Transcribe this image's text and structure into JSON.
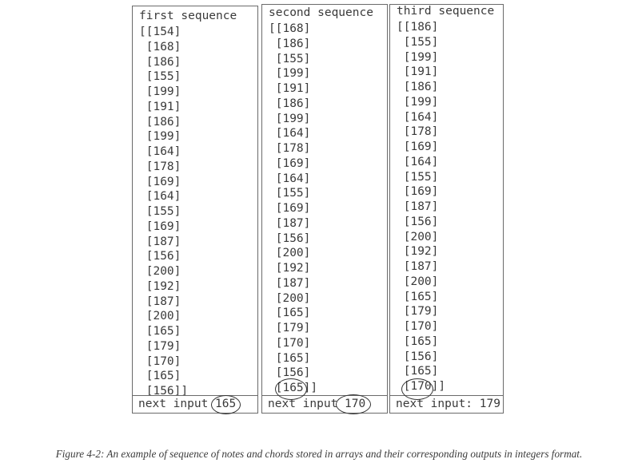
{
  "columns": [
    {
      "title": "first sequence",
      "items": [
        "[[154]",
        " [168]",
        " [186]",
        " [155]",
        " [199]",
        " [191]",
        " [186]",
        " [199]",
        " [164]",
        " [178]",
        " [169]",
        " [164]",
        " [155]",
        " [169]",
        " [187]",
        " [156]",
        " [200]",
        " [192]",
        " [187]",
        " [200]",
        " [165]",
        " [179]",
        " [170]",
        " [165]",
        " [156]]"
      ],
      "next_input": "next input 165"
    },
    {
      "title": "second sequence",
      "items": [
        "[[168]",
        " [186]",
        " [155]",
        " [199]",
        " [191]",
        " [186]",
        " [199]",
        " [164]",
        " [178]",
        " [169]",
        " [164]",
        " [155]",
        " [169]",
        " [187]",
        " [156]",
        " [200]",
        " [192]",
        " [187]",
        " [200]",
        " [165]",
        " [179]",
        " [170]",
        " [165]",
        " [156]",
        " [165]]"
      ],
      "next_input": "next input 170"
    },
    {
      "title": "third sequence",
      "items": [
        "[[186]",
        " [155]",
        " [199]",
        " [191]",
        " [186]",
        " [199]",
        " [164]",
        " [178]",
        " [169]",
        " [164]",
        " [155]",
        " [169]",
        " [187]",
        " [156]",
        " [200]",
        " [192]",
        " [187]",
        " [200]",
        " [165]",
        " [179]",
        " [170]",
        " [165]",
        " [156]",
        " [165]",
        " [170]]"
      ],
      "next_input": "next input: 179"
    }
  ],
  "caption": "Figure 4-2: An example of sequence of notes and chords stored in arrays and their corresponding outputs in integers format."
}
